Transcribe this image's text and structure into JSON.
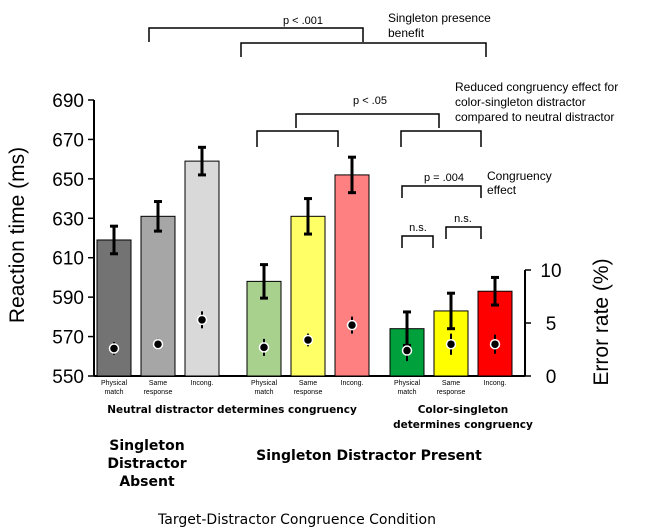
{
  "chart_data": {
    "type": "bar",
    "xlabel": "Target-Distractor Congruence Condition",
    "ylabel": "Reaction time (ms)",
    "y2label": "Error rate (%)",
    "ylim": [
      550,
      690
    ],
    "yticks": [
      550,
      570,
      590,
      610,
      630,
      650,
      670,
      690
    ],
    "y2lim": [
      0,
      10
    ],
    "y2ticks": [
      0,
      5,
      10
    ],
    "grid": false,
    "bars": [
      {
        "group": 0,
        "label": "Physical match",
        "label_lines": [
          "Physical",
          "match"
        ],
        "rt": 619,
        "rt_err": 7,
        "error_rate": 2.6,
        "error_err": 0.6,
        "color": "#737373"
      },
      {
        "group": 0,
        "label": "Same response",
        "label_lines": [
          "Same",
          "response"
        ],
        "rt": 631,
        "rt_err": 7.5,
        "error_rate": 3.0,
        "error_err": 0.5,
        "color": "#a6a6a6"
      },
      {
        "group": 0,
        "label": "Incong.",
        "label_lines": [
          "Incong."
        ],
        "rt": 659,
        "rt_err": 7,
        "error_rate": 5.3,
        "error_err": 0.8,
        "color": "#d9d9d9"
      },
      {
        "group": 1,
        "label": "Physical match",
        "label_lines": [
          "Physical",
          "match"
        ],
        "rt": 598,
        "rt_err": 8.5,
        "error_rate": 2.7,
        "error_err": 0.8,
        "color": "#a9d18e"
      },
      {
        "group": 1,
        "label": "Same response",
        "label_lines": [
          "Same",
          "response"
        ],
        "rt": 631,
        "rt_err": 9,
        "error_rate": 3.4,
        "error_err": 0.6,
        "color": "#ffff66"
      },
      {
        "group": 1,
        "label": "Incong.",
        "label_lines": [
          "Incong."
        ],
        "rt": 652,
        "rt_err": 9,
        "error_rate": 4.8,
        "error_err": 0.8,
        "color": "#ff8080"
      },
      {
        "group": 2,
        "label": "Physical match",
        "label_lines": [
          "Physical",
          "match"
        ],
        "rt": 574,
        "rt_err": 8.5,
        "error_rate": 2.4,
        "error_err": 1.0,
        "color": "#00a03c"
      },
      {
        "group": 2,
        "label": "Same response",
        "label_lines": [
          "Same",
          "response"
        ],
        "rt": 583,
        "rt_err": 9,
        "error_rate": 3.0,
        "error_err": 1.0,
        "color": "#ffff00"
      },
      {
        "group": 2,
        "label": "Incong.",
        "label_lines": [
          "Incong."
        ],
        "rt": 593,
        "rt_err": 7,
        "error_rate": 3.0,
        "error_err": 0.9,
        "color": "#ff0000"
      }
    ],
    "group_labels": [
      {
        "lines": [
          "Neutral distractor determines congruency"
        ]
      },
      {
        "lines": [
          "Color-singleton",
          "determines congruency"
        ]
      }
    ],
    "condition_labels": [
      {
        "lines": [
          "Singleton",
          "Distractor",
          "Absent"
        ]
      },
      {
        "lines": [
          "Singleton Distractor Present"
        ]
      }
    ],
    "annotations": [
      {
        "sig": "p < .001",
        "label": [
          "Singleton presence",
          "benefit"
        ]
      },
      {
        "sig": "p < .05",
        "label": [
          "Reduced congruency effect for",
          "color-singleton distractor",
          "compared to neutral distractor"
        ]
      },
      {
        "sig": "p = .004",
        "label": [
          "Congruency",
          "effect"
        ]
      },
      {
        "sig": "n.s.",
        "label": []
      },
      {
        "sig": "n.s.",
        "label": []
      }
    ]
  }
}
